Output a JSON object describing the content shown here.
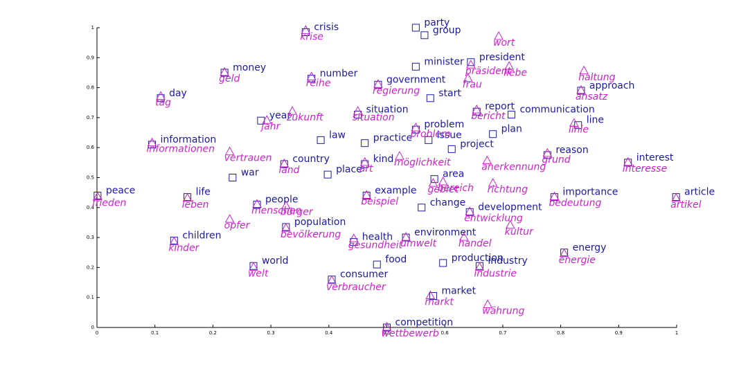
{
  "chart_data": {
    "type": "scatter",
    "xlim": [
      0,
      1
    ],
    "ylim": [
      0,
      1
    ],
    "xticks": [
      0,
      0.1,
      0.2,
      0.3,
      0.4,
      0.5,
      0.6,
      0.7,
      0.8,
      0.9,
      1
    ],
    "yticks": [
      0,
      0.1,
      0.2,
      0.3,
      0.4,
      0.5,
      0.6,
      0.7,
      0.8,
      0.9,
      1
    ],
    "series": [
      {
        "color": "#1a1aa0",
        "marker": "square",
        "label_style": "normal",
        "labels": [
          "party",
          "group",
          "crisis",
          "minister",
          "president",
          "money",
          "number",
          "government",
          "start",
          "approach",
          "day",
          "situation",
          "report",
          "communication",
          "year",
          "line",
          "problem",
          "plan",
          "law",
          "issue",
          "practice",
          "information",
          "project",
          "reason",
          "interest",
          "country",
          "kind",
          "war",
          "place",
          "area",
          "peace",
          "life",
          "article",
          "importance",
          "example",
          "people",
          "change",
          "development",
          "population",
          "environment",
          "children",
          "health",
          "energy",
          "food",
          "world",
          "production",
          "industry",
          "consumer",
          "market",
          "competition"
        ],
        "x": [
          0.55,
          0.565,
          0.36,
          0.55,
          0.645,
          0.22,
          0.37,
          0.485,
          0.575,
          0.835,
          0.11,
          0.45,
          0.655,
          0.715,
          0.283,
          0.83,
          0.55,
          0.683,
          0.386,
          0.572,
          0.462,
          0.095,
          0.612,
          0.777,
          0.916,
          0.323,
          0.462,
          0.234,
          0.398,
          0.582,
          0.001,
          0.156,
          0.999,
          0.789,
          0.465,
          0.276,
          0.56,
          0.643,
          0.326,
          0.533,
          0.133,
          0.443,
          0.806,
          0.483,
          0.27,
          0.597,
          0.66,
          0.405,
          0.58,
          0.5
        ],
        "y": [
          1.0,
          0.975,
          0.985,
          0.87,
          0.885,
          0.85,
          0.83,
          0.81,
          0.765,
          0.79,
          0.765,
          0.71,
          0.72,
          0.71,
          0.69,
          0.675,
          0.66,
          0.645,
          0.625,
          0.625,
          0.615,
          0.61,
          0.595,
          0.575,
          0.55,
          0.545,
          0.545,
          0.5,
          0.51,
          0.495,
          0.44,
          0.435,
          0.435,
          0.435,
          0.44,
          0.41,
          0.4,
          0.385,
          0.335,
          0.3,
          0.29,
          0.285,
          0.25,
          0.21,
          0.205,
          0.215,
          0.205,
          0.16,
          0.105,
          0.0
        ]
      },
      {
        "color": "#cc22cc",
        "marker": "triangle",
        "label_style": "italic",
        "labels": [
          "krise",
          "wort",
          "präsident",
          "liebe",
          "geld",
          "haltung",
          "reihe",
          "frau",
          "regierung",
          "ansatz",
          "tag",
          "situation",
          "bericht",
          "jahr",
          "zukunft",
          "linie",
          "problem",
          "informationen",
          "vertrauen",
          "grund",
          "möglichkeit",
          "interesse",
          "land",
          "art",
          "anerkennung",
          "bereich",
          "gebiet",
          "richtung",
          "frieden",
          "leben",
          "artikel",
          "bedeutung",
          "beispiel",
          "menschen",
          "bürger",
          "entwicklung",
          "opfer",
          "bevölkerung",
          "kultur",
          "umwelt",
          "handel",
          "kinder",
          "gesundheit",
          "energie",
          "welt",
          "industrie",
          "verbraucher",
          "markt",
          "währung",
          "wettbewerb"
        ],
        "x": [
          0.36,
          0.693,
          0.645,
          0.711,
          0.22,
          0.84,
          0.37,
          0.64,
          0.485,
          0.835,
          0.11,
          0.45,
          0.655,
          0.293,
          0.337,
          0.823,
          0.55,
          0.095,
          0.229,
          0.777,
          0.522,
          0.916,
          0.323,
          0.462,
          0.673,
          0.597,
          0.58,
          0.683,
          0.001,
          0.156,
          0.999,
          0.789,
          0.465,
          0.276,
          0.326,
          0.643,
          0.229,
          0.326,
          0.713,
          0.533,
          0.633,
          0.133,
          0.443,
          0.806,
          0.27,
          0.66,
          0.405,
          0.575,
          0.674,
          0.5
        ],
        "y": [
          0.99,
          0.97,
          0.875,
          0.87,
          0.85,
          0.855,
          0.835,
          0.83,
          0.81,
          0.79,
          0.77,
          0.72,
          0.725,
          0.69,
          0.72,
          0.68,
          0.665,
          0.615,
          0.585,
          0.58,
          0.57,
          0.55,
          0.545,
          0.55,
          0.555,
          0.485,
          0.48,
          0.48,
          0.435,
          0.43,
          0.43,
          0.435,
          0.44,
          0.41,
          0.405,
          0.385,
          0.36,
          0.33,
          0.34,
          0.3,
          0.3,
          0.285,
          0.295,
          0.245,
          0.2,
          0.2,
          0.155,
          0.105,
          0.075,
          0.0
        ]
      }
    ]
  }
}
